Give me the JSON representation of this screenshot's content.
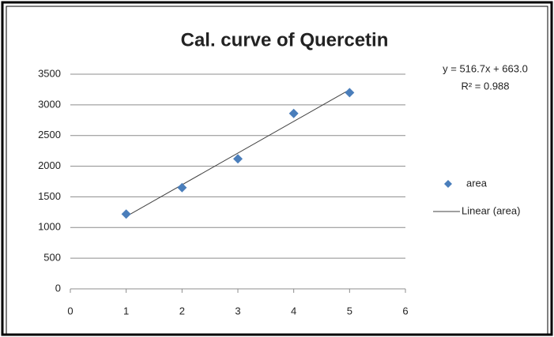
{
  "chart_data": {
    "type": "scatter",
    "title": "Cal. curve of Quercetin",
    "annotations": [
      "y = 516.7x + 663.0",
      "R² = 0.988"
    ],
    "series": [
      {
        "name": "area",
        "color": "#4a7ebb",
        "x": [
          1,
          2,
          3,
          4,
          5
        ],
        "values": [
          1220,
          1650,
          2120,
          2860,
          3200
        ]
      }
    ],
    "trendline": {
      "name": "Linear (area)",
      "color": "#404040",
      "x": [
        1,
        5
      ],
      "values": [
        1180,
        3247
      ]
    },
    "xlim": [
      0,
      6
    ],
    "xticks": [
      0,
      1,
      2,
      3,
      4,
      5,
      6
    ],
    "ylim": [
      0,
      3500
    ],
    "yticks": [
      0,
      500,
      1000,
      1500,
      2000,
      2500,
      3000,
      3500
    ],
    "grid": true,
    "legend": "right"
  }
}
